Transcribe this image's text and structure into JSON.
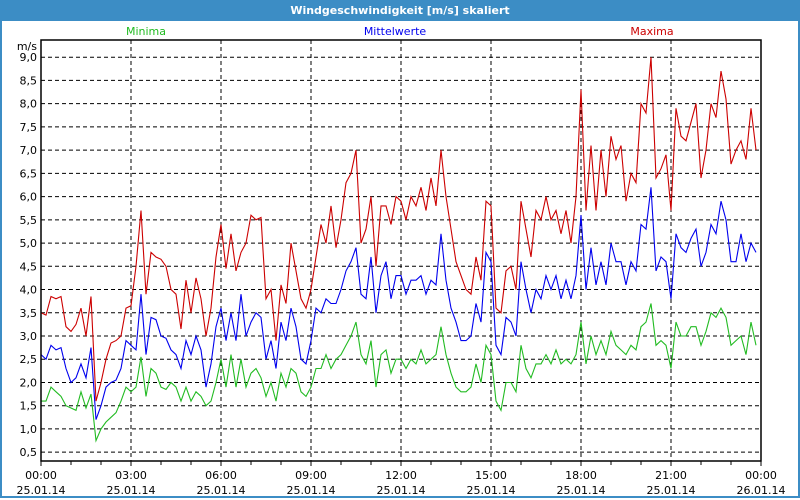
{
  "window": {
    "title": "Windgeschwindigkeit [m/s] skaliert"
  },
  "chart_data": {
    "type": "line",
    "title": "Windgeschwindigkeit [m/s] skaliert",
    "ylabel": "m/s",
    "xlabel": "",
    "ylim": [
      0.31,
      9.37
    ],
    "xlim_hours": [
      0,
      24
    ],
    "grid": true,
    "y_ticks": [
      "0,5",
      "1,0",
      "1,5",
      "2,0",
      "2,5",
      "3,0",
      "3,5",
      "4,0",
      "4,5",
      "5,0",
      "5,5",
      "6,0",
      "6,5",
      "7,0",
      "7,5",
      "8,0",
      "8,5",
      "9,0"
    ],
    "x_ticks": [
      {
        "time": "00:00",
        "date": "25.01.14"
      },
      {
        "time": "03:00",
        "date": "25.01.14"
      },
      {
        "time": "06:00",
        "date": "25.01.14"
      },
      {
        "time": "09:00",
        "date": "25.01.14"
      },
      {
        "time": "12:00",
        "date": "25.01.14"
      },
      {
        "time": "15:00",
        "date": "25.01.14"
      },
      {
        "time": "18:00",
        "date": "25.01.14"
      },
      {
        "time": "21:00",
        "date": "25.01.14"
      },
      {
        "time": "00:00",
        "date": "26.01.14"
      }
    ],
    "x_step_minutes": 10,
    "series": [
      {
        "name": "Minima",
        "color": "#22bb22",
        "values": [
          1.6,
          1.6,
          1.9,
          1.8,
          1.7,
          1.5,
          1.45,
          1.4,
          1.8,
          1.45,
          1.75,
          0.75,
          1.0,
          1.15,
          1.25,
          1.35,
          1.6,
          1.9,
          1.8,
          1.9,
          2.55,
          1.7,
          2.3,
          2.2,
          1.9,
          1.85,
          2.0,
          1.9,
          1.6,
          1.9,
          1.6,
          1.8,
          1.7,
          1.5,
          1.6,
          2.0,
          2.5,
          1.9,
          2.6,
          1.9,
          2.5,
          1.9,
          2.2,
          2.3,
          2.1,
          1.7,
          2.0,
          1.6,
          2.2,
          1.9,
          2.3,
          2.2,
          1.8,
          1.7,
          1.9,
          2.3,
          2.3,
          2.6,
          2.3,
          2.5,
          2.6,
          2.8,
          3.0,
          3.3,
          2.6,
          2.4,
          2.9,
          1.9,
          2.6,
          2.7,
          2.2,
          2.5,
          2.5,
          2.3,
          2.5,
          2.4,
          2.7,
          2.4,
          2.5,
          2.6,
          3.2,
          2.6,
          2.2,
          1.9,
          1.8,
          1.8,
          1.9,
          2.4,
          2.0,
          2.8,
          2.6,
          1.6,
          1.4,
          2.0,
          2.0,
          1.8,
          2.8,
          2.3,
          2.1,
          2.4,
          2.4,
          2.6,
          2.4,
          2.7,
          2.4,
          2.5,
          2.4,
          2.6,
          3.3,
          2.4,
          3.0,
          2.6,
          2.9,
          2.6,
          3.1,
          2.8,
          2.7,
          2.6,
          2.8,
          2.7,
          3.2,
          3.3,
          3.7,
          2.8,
          2.9,
          2.8,
          2.3,
          3.3,
          3.0,
          3.0,
          3.2,
          3.2,
          2.8,
          3.1,
          3.5,
          3.4,
          3.6,
          3.4,
          2.8,
          2.9,
          3.0,
          2.6,
          3.3,
          2.8
        ]
      },
      {
        "name": "Mittelwerte",
        "color": "#0000ee",
        "values": [
          2.6,
          2.5,
          2.8,
          2.7,
          2.75,
          2.3,
          2.0,
          2.1,
          2.4,
          2.1,
          2.75,
          1.2,
          1.5,
          1.9,
          2.0,
          2.05,
          2.3,
          2.9,
          2.8,
          2.7,
          3.9,
          2.6,
          3.4,
          3.35,
          3.0,
          2.95,
          2.7,
          2.6,
          2.3,
          2.9,
          2.6,
          3.0,
          2.7,
          1.9,
          2.4,
          3.2,
          3.6,
          2.9,
          3.5,
          2.9,
          3.9,
          3.0,
          3.3,
          3.5,
          3.4,
          2.5,
          2.9,
          2.3,
          3.3,
          2.9,
          3.6,
          3.2,
          2.5,
          2.4,
          2.9,
          3.6,
          3.5,
          3.8,
          3.7,
          3.7,
          4.0,
          4.4,
          4.6,
          4.9,
          3.9,
          3.8,
          4.7,
          3.5,
          4.3,
          4.6,
          3.8,
          4.3,
          4.3,
          3.9,
          4.2,
          4.2,
          4.3,
          3.9,
          4.2,
          4.1,
          5.2,
          4.2,
          3.6,
          3.3,
          2.9,
          2.9,
          3.0,
          3.7,
          3.3,
          4.8,
          4.6,
          2.8,
          2.6,
          3.4,
          3.3,
          3.0,
          4.6,
          4.0,
          3.5,
          4.0,
          3.8,
          4.3,
          4.0,
          4.3,
          3.8,
          4.2,
          3.8,
          4.3,
          5.6,
          4.0,
          4.9,
          4.1,
          4.6,
          4.1,
          5.0,
          4.6,
          4.6,
          4.1,
          4.6,
          4.4,
          5.4,
          5.3,
          6.2,
          4.4,
          4.7,
          4.6,
          3.8,
          5.2,
          4.9,
          4.8,
          5.1,
          5.3,
          4.5,
          4.8,
          5.4,
          5.2,
          5.9,
          5.5,
          4.6,
          4.6,
          5.2,
          4.6,
          5.0,
          4.8
        ]
      },
      {
        "name": "Maxima",
        "color": "#cc0000",
        "values": [
          3.5,
          3.45,
          3.85,
          3.8,
          3.85,
          3.2,
          3.1,
          3.25,
          3.6,
          3.0,
          3.85,
          1.6,
          2.0,
          2.5,
          2.85,
          2.9,
          3.0,
          3.6,
          3.65,
          4.5,
          5.7,
          3.9,
          4.8,
          4.7,
          4.65,
          4.5,
          4.0,
          3.9,
          3.15,
          4.2,
          3.5,
          4.25,
          3.8,
          3.0,
          3.6,
          4.7,
          5.4,
          4.45,
          5.2,
          4.4,
          4.8,
          5.0,
          5.6,
          5.5,
          5.55,
          3.8,
          4.0,
          2.9,
          4.1,
          3.7,
          5.0,
          4.4,
          3.8,
          3.6,
          4.0,
          4.7,
          5.4,
          5.0,
          5.8,
          4.9,
          5.5,
          6.3,
          6.5,
          7.0,
          5.0,
          5.3,
          6.0,
          4.5,
          5.8,
          5.8,
          5.4,
          6.0,
          5.9,
          5.5,
          6.0,
          5.8,
          6.2,
          5.7,
          6.4,
          5.8,
          7.0,
          6.0,
          5.3,
          4.6,
          4.3,
          4.0,
          3.9,
          4.7,
          4.2,
          5.9,
          5.8,
          3.6,
          3.5,
          4.4,
          4.5,
          4.0,
          5.9,
          5.3,
          4.7,
          5.7,
          5.5,
          6.0,
          5.5,
          5.7,
          5.2,
          5.7,
          5.0,
          6.0,
          8.3,
          5.7,
          7.1,
          5.7,
          7.0,
          6.0,
          7.3,
          6.8,
          7.1,
          5.9,
          6.5,
          6.3,
          8.0,
          7.8,
          9.0,
          6.4,
          6.6,
          6.9,
          5.7,
          7.9,
          7.3,
          7.2,
          7.6,
          8.0,
          6.4,
          7.0,
          8.0,
          7.7,
          8.7,
          8.1,
          6.7,
          7.0,
          7.2,
          6.8,
          7.9,
          7.0
        ]
      }
    ]
  }
}
